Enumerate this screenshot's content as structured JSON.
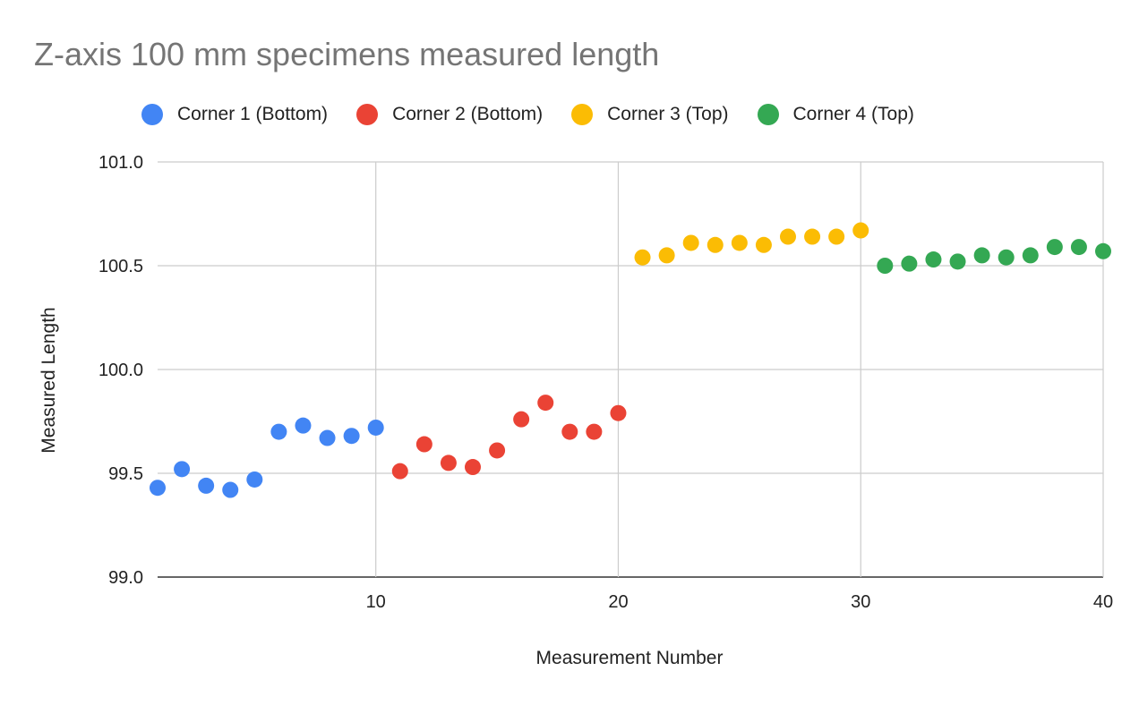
{
  "chart_data": {
    "type": "scatter",
    "title": "Z-axis 100 mm specimens measured length",
    "xlabel": "Measurement Number",
    "ylabel": "Measured Length",
    "xlim": [
      1,
      40
    ],
    "ylim": [
      99.0,
      101.0
    ],
    "xticks": [
      10,
      20,
      30,
      40
    ],
    "yticks": [
      99.0,
      99.5,
      100.0,
      100.5,
      101.0
    ],
    "grid": true,
    "legend_position": "top",
    "series": [
      {
        "name": "Corner 1 (Bottom)",
        "color": "#4285F4",
        "points": [
          [
            1,
            99.43
          ],
          [
            2,
            99.52
          ],
          [
            3,
            99.44
          ],
          [
            4,
            99.42
          ],
          [
            5,
            99.47
          ],
          [
            6,
            99.7
          ],
          [
            7,
            99.73
          ],
          [
            8,
            99.67
          ],
          [
            9,
            99.68
          ],
          [
            10,
            99.72
          ]
        ]
      },
      {
        "name": "Corner 2 (Bottom)",
        "color": "#EA4335",
        "points": [
          [
            11,
            99.51
          ],
          [
            12,
            99.64
          ],
          [
            13,
            99.55
          ],
          [
            14,
            99.53
          ],
          [
            15,
            99.61
          ],
          [
            16,
            99.76
          ],
          [
            17,
            99.84
          ],
          [
            18,
            99.7
          ],
          [
            19,
            99.7
          ],
          [
            20,
            99.79
          ]
        ]
      },
      {
        "name": "Corner 3 (Top)",
        "color": "#FBBC04",
        "points": [
          [
            21,
            100.54
          ],
          [
            22,
            100.55
          ],
          [
            23,
            100.61
          ],
          [
            24,
            100.6
          ],
          [
            25,
            100.61
          ],
          [
            26,
            100.6
          ],
          [
            27,
            100.64
          ],
          [
            28,
            100.64
          ],
          [
            29,
            100.64
          ],
          [
            30,
            100.67
          ]
        ]
      },
      {
        "name": "Corner 4 (Top)",
        "color": "#34A853",
        "points": [
          [
            31,
            100.5
          ],
          [
            32,
            100.51
          ],
          [
            33,
            100.53
          ],
          [
            34,
            100.52
          ],
          [
            35,
            100.55
          ],
          [
            36,
            100.54
          ],
          [
            37,
            100.55
          ],
          [
            38,
            100.59
          ],
          [
            39,
            100.59
          ],
          [
            40,
            100.57
          ]
        ]
      }
    ]
  }
}
